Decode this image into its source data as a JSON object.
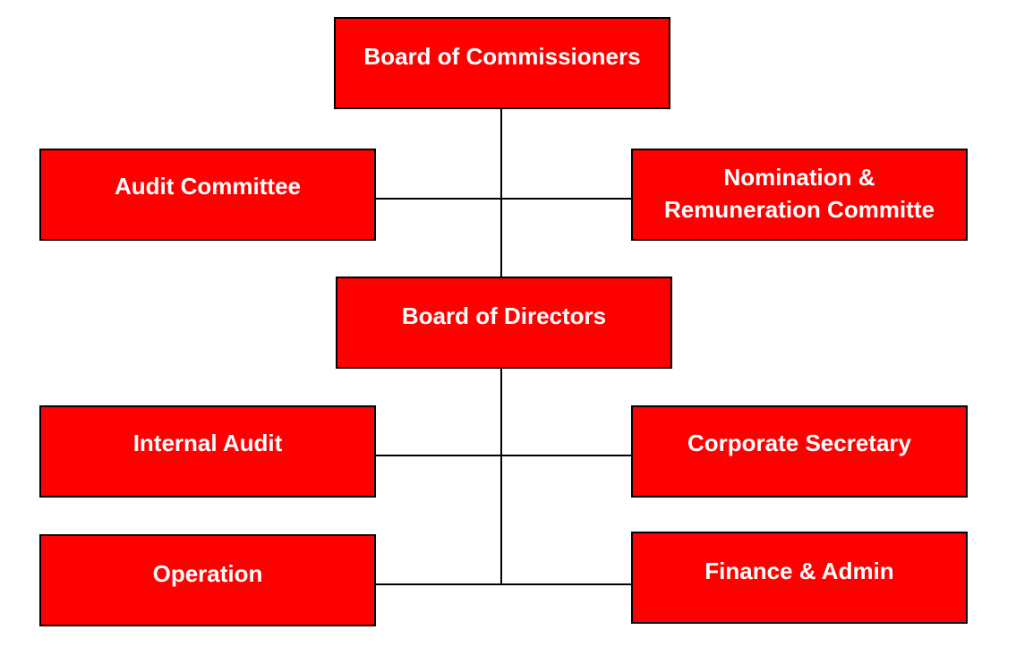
{
  "colors": {
    "box_fill": "#ff0000",
    "box_border": "#000000",
    "box_text": "#ffffff",
    "connector": "#000000"
  },
  "nodes": {
    "board_of_commissioners": "Board of Commissioners",
    "audit_committee": "Audit Committee",
    "nomination_remuneration": "Nomination &\nRemuneration Committe",
    "board_of_directors": "Board of Directors",
    "internal_audit": "Internal Audit",
    "corporate_secretary": "Corporate Secretary",
    "operation": "Operation",
    "finance_admin": "Finance & Admin"
  },
  "edges": [
    [
      "board_of_commissioners",
      "audit_committee"
    ],
    [
      "board_of_commissioners",
      "nomination_remuneration"
    ],
    [
      "board_of_commissioners",
      "board_of_directors"
    ],
    [
      "board_of_directors",
      "internal_audit"
    ],
    [
      "board_of_directors",
      "corporate_secretary"
    ],
    [
      "board_of_directors",
      "operation"
    ],
    [
      "board_of_directors",
      "finance_admin"
    ]
  ]
}
